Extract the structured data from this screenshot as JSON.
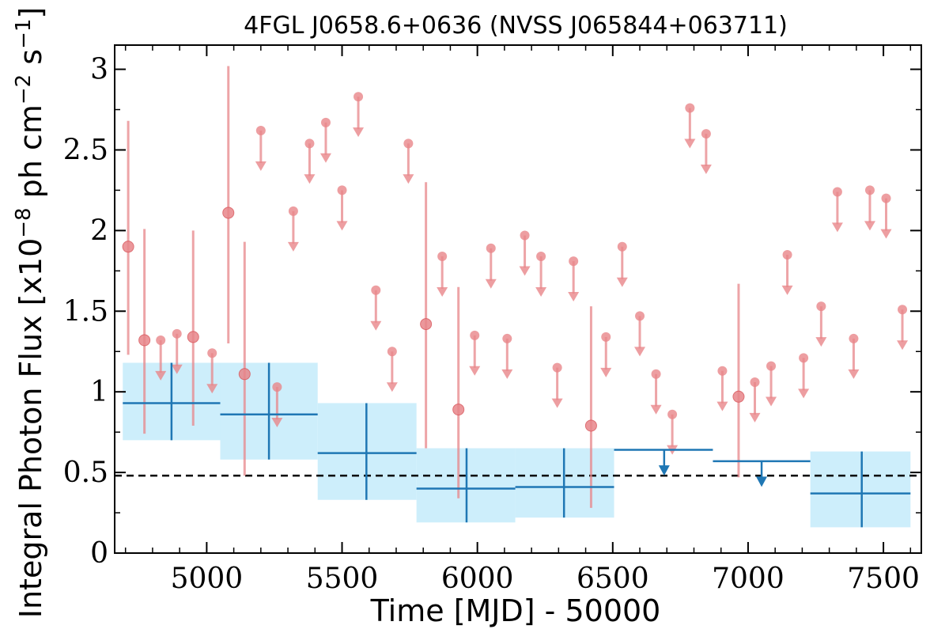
{
  "chart_data": {
    "type": "scatter",
    "title": "4FGL J0658.6+0636 (NVSS J065844+063711)",
    "xlabel": "Time [MJD] - 50000",
    "ylabel": "Integral Photon Flux [x10",
    "ylabel_exp": "−8",
    "ylabel_mid": " ph cm",
    "ylabel_exp2": "−2",
    "ylabel_mid2": " s",
    "ylabel_exp3": "−1",
    "ylabel_end": "]",
    "xlim": [
      4660,
      7640
    ],
    "ylim": [
      0,
      3.15
    ],
    "x_ticks": [
      5000,
      5500,
      6000,
      6500,
      7000,
      7500
    ],
    "x_tick_labels": [
      "5000",
      "5500",
      "6000",
      "6500",
      "7000",
      "7500"
    ],
    "y_ticks": [
      0,
      0.5,
      1,
      1.5,
      2,
      2.5,
      3
    ],
    "y_tick_labels": [
      "0",
      "0.5",
      "1",
      "1.5",
      "2",
      "2.5",
      "3"
    ],
    "reference_line": {
      "y": 0.48,
      "style": "dashed",
      "color": "#000000"
    },
    "colors": {
      "short_bin": "#e8868a",
      "long_bin": "#1f77b4",
      "long_bin_band": "#cdeefb"
    },
    "short_bin_detections": [
      {
        "x": 4710,
        "y": 1.9,
        "ylo": 1.23,
        "yhi": 2.68
      },
      {
        "x": 4770,
        "y": 1.32,
        "ylo": 0.74,
        "yhi": 2.01
      },
      {
        "x": 4950,
        "y": 1.34,
        "ylo": 0.79,
        "yhi": 2.0
      },
      {
        "x": 5080,
        "y": 2.11,
        "ylo": 1.3,
        "yhi": 3.02
      },
      {
        "x": 5140,
        "y": 1.11,
        "ylo": 0.48,
        "yhi": 1.93
      },
      {
        "x": 5810,
        "y": 1.42,
        "ylo": 0.65,
        "yhi": 2.3
      },
      {
        "x": 5930,
        "y": 0.89,
        "ylo": 0.34,
        "yhi": 1.65
      },
      {
        "x": 6420,
        "y": 0.79,
        "ylo": 0.28,
        "yhi": 1.53
      },
      {
        "x": 6965,
        "y": 0.97,
        "ylo": 0.47,
        "yhi": 1.67
      }
    ],
    "short_bin_upper_limits": [
      {
        "x": 4830,
        "y": 1.32
      },
      {
        "x": 4890,
        "y": 1.36
      },
      {
        "x": 5020,
        "y": 1.24
      },
      {
        "x": 5200,
        "y": 2.62
      },
      {
        "x": 5260,
        "y": 1.03
      },
      {
        "x": 5320,
        "y": 2.12
      },
      {
        "x": 5380,
        "y": 2.54
      },
      {
        "x": 5440,
        "y": 2.67
      },
      {
        "x": 5500,
        "y": 2.25
      },
      {
        "x": 5560,
        "y": 2.83
      },
      {
        "x": 5625,
        "y": 1.63
      },
      {
        "x": 5685,
        "y": 1.25
      },
      {
        "x": 5745,
        "y": 2.54
      },
      {
        "x": 5870,
        "y": 1.84
      },
      {
        "x": 5990,
        "y": 1.35
      },
      {
        "x": 6050,
        "y": 1.89
      },
      {
        "x": 6110,
        "y": 1.33
      },
      {
        "x": 6175,
        "y": 1.97
      },
      {
        "x": 6235,
        "y": 1.84
      },
      {
        "x": 6295,
        "y": 1.15
      },
      {
        "x": 6355,
        "y": 1.81
      },
      {
        "x": 6475,
        "y": 1.34
      },
      {
        "x": 6535,
        "y": 1.9
      },
      {
        "x": 6600,
        "y": 1.47
      },
      {
        "x": 6660,
        "y": 1.11
      },
      {
        "x": 6720,
        "y": 0.86
      },
      {
        "x": 6785,
        "y": 2.76
      },
      {
        "x": 6845,
        "y": 2.6
      },
      {
        "x": 6905,
        "y": 1.13
      },
      {
        "x": 7025,
        "y": 1.06
      },
      {
        "x": 7085,
        "y": 1.16
      },
      {
        "x": 7145,
        "y": 1.85
      },
      {
        "x": 7205,
        "y": 1.21
      },
      {
        "x": 7270,
        "y": 1.53
      },
      {
        "x": 7330,
        "y": 2.24
      },
      {
        "x": 7390,
        "y": 1.33
      },
      {
        "x": 7450,
        "y": 2.25
      },
      {
        "x": 7510,
        "y": 2.2
      },
      {
        "x": 7570,
        "y": 1.51
      }
    ],
    "long_bin_detections": [
      {
        "x": 4870,
        "xlo": 4690,
        "xhi": 5050,
        "y": 0.93,
        "ylo": 0.7,
        "yhi": 1.18
      },
      {
        "x": 5230,
        "xlo": 5050,
        "xhi": 5410,
        "y": 0.86,
        "ylo": 0.58,
        "yhi": 1.18
      },
      {
        "x": 5590,
        "xlo": 5410,
        "xhi": 5775,
        "y": 0.62,
        "ylo": 0.33,
        "yhi": 0.93
      },
      {
        "x": 5960,
        "xlo": 5775,
        "xhi": 6140,
        "y": 0.4,
        "ylo": 0.19,
        "yhi": 0.65
      },
      {
        "x": 6320,
        "xlo": 6140,
        "xhi": 6505,
        "y": 0.41,
        "ylo": 0.22,
        "yhi": 0.65
      },
      {
        "x": 7420,
        "xlo": 7230,
        "xhi": 7600,
        "y": 0.37,
        "ylo": 0.16,
        "yhi": 0.63
      }
    ],
    "long_bin_upper_limits": [
      {
        "x": 6690,
        "xlo": 6505,
        "xhi": 6870,
        "y": 0.64
      },
      {
        "x": 7050,
        "xlo": 6870,
        "xhi": 7230,
        "y": 0.57
      }
    ]
  }
}
